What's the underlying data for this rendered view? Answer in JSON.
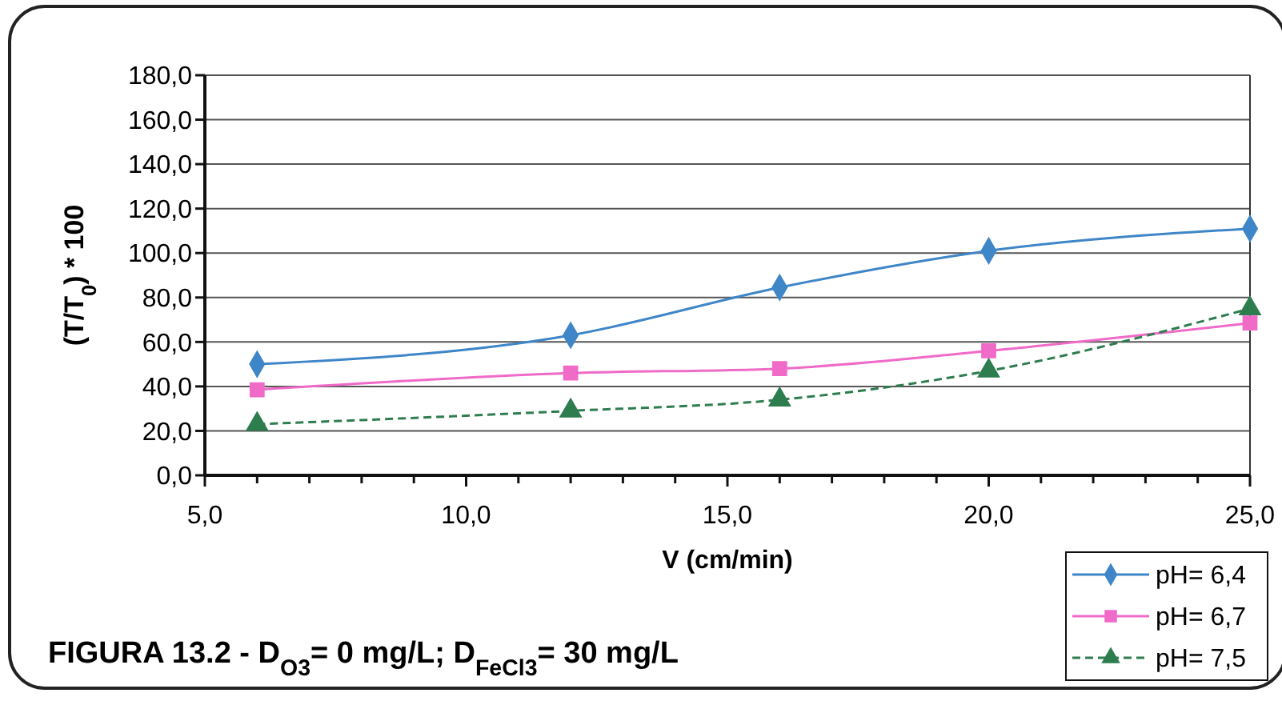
{
  "chart_data": {
    "type": "line",
    "title": "FIGURA 13.2 - D$_{O3}$= 0 mg/L; D$_{FeCl3}$= 30 mg/L",
    "xlabel": "V (cm/min)",
    "ylabel": "(T/T$_{0}$) * 100",
    "x": [
      6,
      12,
      16,
      20,
      25
    ],
    "series": [
      {
        "name": "pH= 6,4",
        "color": "#3f86c8",
        "marker": "diamond",
        "values": [
          50,
          63,
          84.5,
          101,
          111
        ]
      },
      {
        "name": "pH= 6,7",
        "color": "#f06ac8",
        "marker": "square",
        "values": [
          38.5,
          46,
          48,
          56,
          68.5
        ]
      },
      {
        "name": "pH= 7,5",
        "color": "#2e7d4f",
        "marker": "triangle",
        "line_style": "dashed",
        "values": [
          23,
          29,
          34,
          47,
          75
        ]
      }
    ],
    "xlim": [
      5,
      25
    ],
    "xticks": [
      {
        "value": 5,
        "label": "5,0"
      },
      {
        "value": 6,
        "label": null
      },
      {
        "value": 7,
        "label": null
      },
      {
        "value": 8,
        "label": null
      },
      {
        "value": 9,
        "label": null
      },
      {
        "value": 10,
        "label": "10,0"
      },
      {
        "value": 11,
        "label": null
      },
      {
        "value": 12,
        "label": null
      },
      {
        "value": 13,
        "label": null
      },
      {
        "value": 14,
        "label": null
      },
      {
        "value": 15,
        "label": "15,0"
      },
      {
        "value": 16,
        "label": null
      },
      {
        "value": 17,
        "label": null
      },
      {
        "value": 18,
        "label": null
      },
      {
        "value": 19,
        "label": null
      },
      {
        "value": 20,
        "label": "20,0"
      },
      {
        "value": 21,
        "label": null
      },
      {
        "value": 22,
        "label": null
      },
      {
        "value": 23,
        "label": null
      },
      {
        "value": 24,
        "label": null
      },
      {
        "value": 25,
        "label": "25,0"
      }
    ],
    "ylim": [
      0,
      180
    ],
    "yticks": [
      {
        "value": 0,
        "label": "0,0"
      },
      {
        "value": 20,
        "label": "20,0"
      },
      {
        "value": 40,
        "label": "40,0"
      },
      {
        "value": 60,
        "label": "60,0"
      },
      {
        "value": 80,
        "label": "80,0"
      },
      {
        "value": 100,
        "label": "100,0"
      },
      {
        "value": 120,
        "label": "120,0"
      },
      {
        "value": 140,
        "label": "140,0"
      },
      {
        "value": 160,
        "label": "160,0"
      },
      {
        "value": 180,
        "label": "180,0"
      }
    ],
    "grid": "y",
    "legend": "bottom right"
  }
}
